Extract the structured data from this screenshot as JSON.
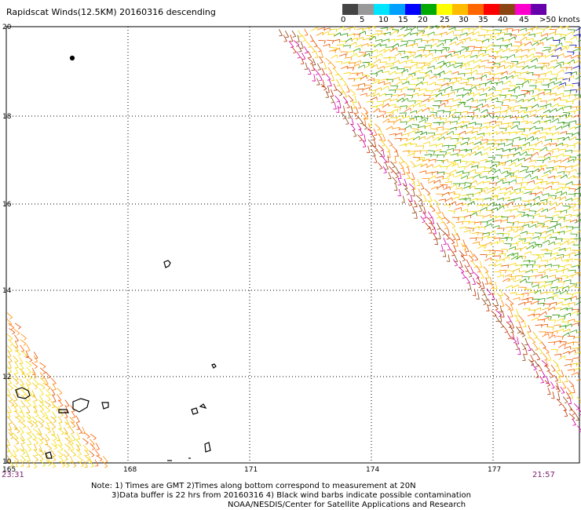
{
  "title": "Rapidscat Winds(12.5KM) 20160316 descending",
  "legend": {
    "labels": [
      "0",
      "5",
      "10",
      "15",
      "20",
      "25",
      "30",
      "35",
      "40",
      "45",
      ">50 knots"
    ],
    "colors": [
      "#444444",
      "#9a9a9a",
      "#00ccff",
      "#0066ff",
      "#00aa00",
      "#ffff00",
      "#ffaa00",
      "#ff6600",
      "#ff0000",
      "#8b4513",
      "#ff00cc",
      "#6600aa",
      "#000000"
    ]
  },
  "axes": {
    "lon_labels": [
      "165",
      "168",
      "171",
      "174",
      "177"
    ],
    "lat_labels": [
      "20",
      "18",
      "16",
      "14",
      "12",
      "10"
    ]
  },
  "times": {
    "left": "23:31",
    "right": "21:57"
  },
  "notes": [
    "Note: 1) Times are GMT 2)Times along bottom correspond to measurement at 20N",
    "3)Data buffer is 22 hrs from 20160316 4) Black wind barbs indicate possible contamination",
    "NOAA/NESDIS/Center for Satellite Applications and Research"
  ],
  "palette": {
    "barb_colors": [
      "#e6d800",
      "#f2c200",
      "#ffd000",
      "#eeb000",
      "#3aa000",
      "#1e8a00",
      "#ff8c00",
      "#ff6000",
      "#c03000",
      "#8b4513",
      "#d000a0",
      "#0000aa",
      "#000000"
    ]
  }
}
